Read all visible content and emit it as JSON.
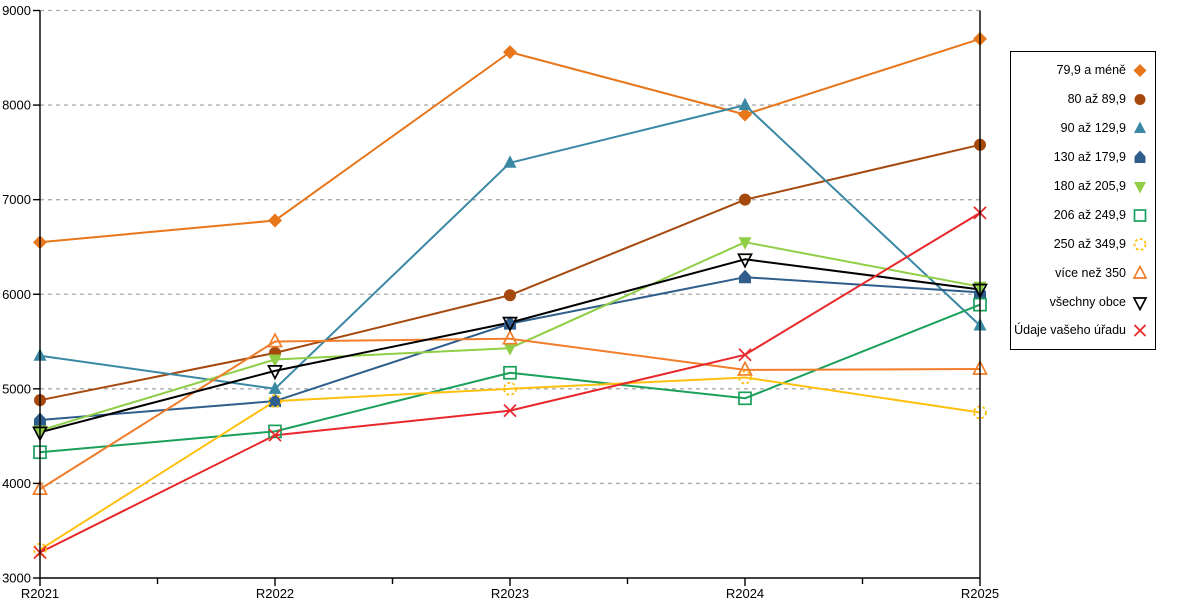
{
  "chart_data": {
    "type": "line",
    "title": "",
    "xlabel": "",
    "ylabel": "",
    "x": [
      "R2021",
      "R2022",
      "R2023",
      "R2024",
      "R2025"
    ],
    "ylim": [
      3000,
      9000
    ],
    "yticks": [
      3000,
      4000,
      5000,
      6000,
      7000,
      8000,
      9000
    ],
    "grid": "horizontal-dashed",
    "gridline_color": "#ababab",
    "axis_color": "#000000",
    "legend_position": "right-outside",
    "series": [
      {
        "name": "79,9 a méně",
        "marker": "diamond",
        "style": "filled",
        "color": "#E8761B",
        "values": [
          6550,
          6780,
          8560,
          7900,
          8700
        ]
      },
      {
        "name": "80 až 89,9",
        "marker": "circle",
        "style": "filled",
        "color": "#A5490E",
        "values": [
          4880,
          5380,
          5990,
          7000,
          7580
        ]
      },
      {
        "name": "90 až 129,9",
        "marker": "triangle-up",
        "style": "filled",
        "color": "#3A88A3",
        "values": [
          5350,
          5000,
          7390,
          8000,
          5670
        ]
      },
      {
        "name": "130 až 179,9",
        "marker": "pentagon",
        "style": "filled",
        "color": "#2F5D8C",
        "values": [
          4670,
          4870,
          5690,
          6180,
          6020
        ]
      },
      {
        "name": "180 až 205,9",
        "marker": "triangle-down",
        "style": "filled",
        "color": "#8FCE45",
        "values": [
          4560,
          5310,
          5430,
          6550,
          6080
        ]
      },
      {
        "name": "206 až 249,9",
        "marker": "square",
        "style": "open",
        "color": "#1BA05B",
        "values": [
          4330,
          4550,
          5170,
          4900,
          5890
        ]
      },
      {
        "name": "250 až 349,9",
        "marker": "circle-dashed",
        "style": "open",
        "color": "#FFC010",
        "values": [
          3300,
          4870,
          5000,
          5120,
          4750
        ]
      },
      {
        "name": "více než 350",
        "marker": "triangle-up",
        "style": "open",
        "color": "#F07D2A",
        "values": [
          3940,
          5500,
          5530,
          5200,
          5210
        ]
      },
      {
        "name": "všechny obce",
        "marker": "triangle-down",
        "style": "open",
        "color": "#000000",
        "values": [
          4540,
          5190,
          5700,
          6370,
          6050
        ]
      },
      {
        "name": "Údaje vašeho úřadu",
        "marker": "x",
        "style": "open",
        "color": "#E8272B",
        "values": [
          3270,
          4510,
          4770,
          5360,
          6860
        ]
      }
    ]
  }
}
